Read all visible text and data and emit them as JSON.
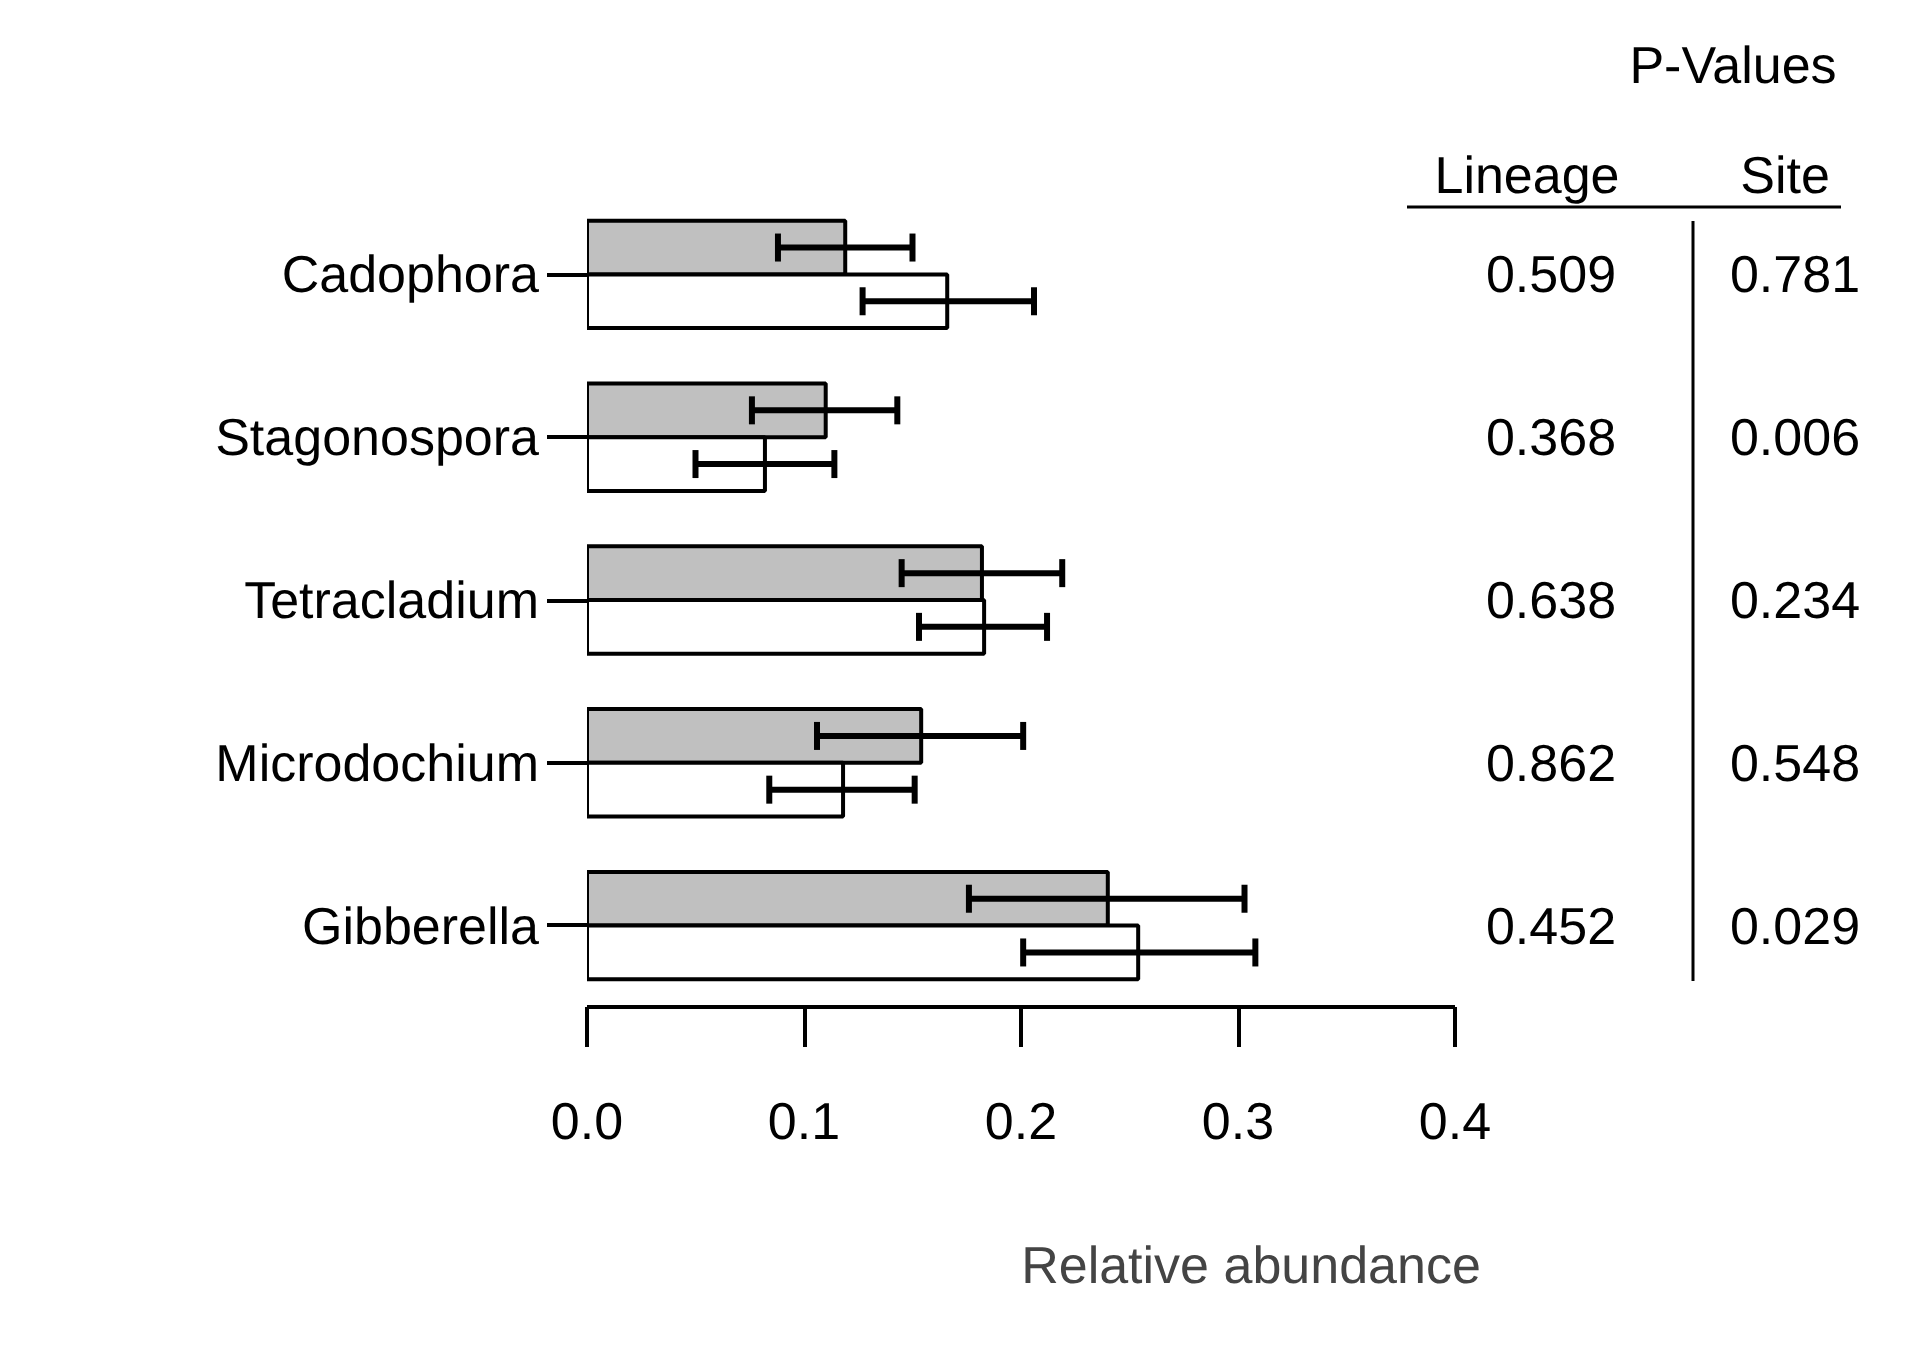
{
  "chart_data": {
    "type": "bar",
    "orientation": "horizontal",
    "xlabel": "Relative abundance",
    "categories": [
      "Cadophora",
      "Stagonospora",
      "Tetracladium",
      "Microdochium",
      "Gibberella"
    ],
    "series": [
      {
        "color": "#c0c0c0",
        "values": [
          0.119,
          0.11,
          0.182,
          0.154,
          0.24
        ],
        "errors": [
          [
            0.088,
            0.15
          ],
          [
            0.076,
            0.143
          ],
          [
            0.145,
            0.219
          ],
          [
            0.106,
            0.201
          ],
          [
            0.176,
            0.303
          ]
        ]
      },
      {
        "color": "#ffffff",
        "values": [
          0.166,
          0.082,
          0.183,
          0.118,
          0.254
        ],
        "errors": [
          [
            0.127,
            0.206
          ],
          [
            0.05,
            0.114
          ],
          [
            0.153,
            0.212
          ],
          [
            0.084,
            0.151
          ],
          [
            0.201,
            0.308
          ]
        ]
      }
    ],
    "xlim": [
      0,
      0.4
    ],
    "xticks": [
      {
        "value": 0,
        "label": "0.0"
      },
      {
        "value": 0.1,
        "label": "0.1"
      },
      {
        "value": 0.2,
        "label": "0.2"
      },
      {
        "value": 0.3,
        "label": "0.3"
      },
      {
        "value": 0.4,
        "label": "0.4"
      }
    ],
    "grid": false,
    "legend": false,
    "annotations": [
      "P-Values",
      "Lineage",
      "Site",
      "0.509",
      "0.781",
      "0.368",
      "0.006",
      "0.638",
      "0.234",
      "0.862",
      "0.548",
      "0.452",
      "0.029"
    ]
  }
}
